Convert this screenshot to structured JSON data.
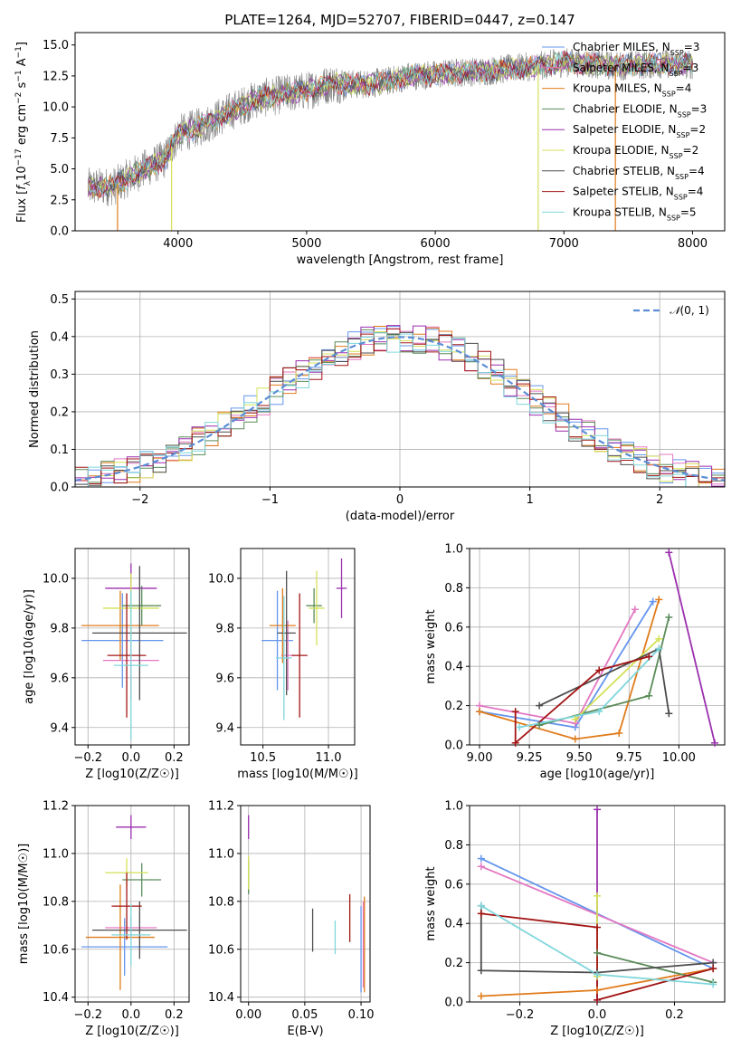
{
  "colors": {
    "Chabrier MILES": "#6495ED",
    "Salpeter MILES": "#E377C2",
    "Kroupa MILES": "#E07B1A",
    "Chabrier ELODIE": "#5B8C5A",
    "Salpeter ELODIE": "#9B2FAE",
    "Kroupa ELODIE": "#D4E157",
    "Chabrier STELIB": "#4D4D4D",
    "Salpeter STELIB": "#A31515",
    "Kroupa STELIB": "#7FD6DB"
  },
  "chart_data": [
    {
      "id": "spectrum",
      "type": "line",
      "title": "PLATE=1264, MJD=52707, FIBERID=0447, z=0.147",
      "xlabel": "wavelength [Angstrom, rest frame]",
      "ylabel": "Flux [f_λ10^-17 erg cm^-2 s^-1 A^-1]",
      "xlim": [
        3200,
        8250
      ],
      "ylim": [
        0,
        16
      ],
      "xticks": [
        4000,
        5000,
        6000,
        7000,
        8000
      ],
      "yticks": [
        0.0,
        2.5,
        5.0,
        7.5,
        10.0,
        12.5,
        15.0
      ],
      "legend": "top-right",
      "legend_entries": [
        {
          "name": "Chabrier MILES",
          "nssp": "3"
        },
        {
          "name": "Salpeter MILES",
          "nssp": "3"
        },
        {
          "name": "Kroupa MILES",
          "nssp": "4"
        },
        {
          "name": "Chabrier ELODIE",
          "nssp": "3"
        },
        {
          "name": "Salpeter ELODIE",
          "nssp": "2"
        },
        {
          "name": "Kroupa ELODIE",
          "nssp": "2"
        },
        {
          "name": "Chabrier STELIB",
          "nssp": "4"
        },
        {
          "name": "Salpeter STELIB",
          "nssp": "4"
        },
        {
          "name": "Kroupa STELIB",
          "nssp": "5"
        }
      ],
      "continuum": [
        [
          3300,
          3.5
        ],
        [
          3500,
          3.6
        ],
        [
          3700,
          4.8
        ],
        [
          3900,
          5.8
        ],
        [
          4000,
          7.8
        ],
        [
          4200,
          8.5
        ],
        [
          4400,
          9.6
        ],
        [
          4600,
          10.6
        ],
        [
          4800,
          11.0
        ],
        [
          5000,
          11.3
        ],
        [
          5200,
          11.9
        ],
        [
          5400,
          11.8
        ],
        [
          5600,
          12.0
        ],
        [
          5800,
          12.5
        ],
        [
          6000,
          12.6
        ],
        [
          6200,
          12.8
        ],
        [
          6400,
          12.9
        ],
        [
          6600,
          13.1
        ],
        [
          6800,
          13.3
        ],
        [
          7000,
          13.6
        ],
        [
          7200,
          13.5
        ],
        [
          7400,
          13.3
        ],
        [
          7600,
          13.4
        ],
        [
          7800,
          13.5
        ],
        [
          8000,
          13.4
        ]
      ]
    },
    {
      "id": "residuals",
      "type": "histogram",
      "xlabel": "(data-model)/error",
      "ylabel": "Normed distribution",
      "xlim": [
        -2.5,
        2.5
      ],
      "ylim": [
        0,
        0.52
      ],
      "xticks": [
        -2,
        -1,
        0,
        1,
        2
      ],
      "yticks": [
        0.0,
        0.1,
        0.2,
        0.3,
        0.4,
        0.5
      ],
      "reference_curve": "N(0,1)",
      "legend": "top-right"
    },
    {
      "id": "age_vs_Z",
      "type": "errorbar",
      "xlabel": "Z [log10(Z/Z☉)]",
      "ylabel": "age [log10(age/yr)]",
      "xlim": [
        -0.26,
        0.27
      ],
      "ylim": [
        9.33,
        10.12
      ],
      "xticks": [
        -0.2,
        0.0,
        0.2
      ],
      "yticks": [
        9.4,
        9.6,
        9.8,
        10.0
      ],
      "points": [
        {
          "model": "Chabrier MILES",
          "x": -0.04,
          "xerr": 0.19,
          "y": 9.75,
          "yerr": 0.19
        },
        {
          "model": "Salpeter MILES",
          "x": 0.0,
          "xerr": 0.13,
          "y": 9.67,
          "yerr": 0.16
        },
        {
          "model": "Kroupa MILES",
          "x": -0.05,
          "xerr": 0.18,
          "y": 9.81,
          "yerr": 0.14
        },
        {
          "model": "Chabrier ELODIE",
          "x": 0.05,
          "xerr": 0.09,
          "y": 9.89,
          "yerr": 0.08
        },
        {
          "model": "Salpeter ELODIE",
          "x": 0.0,
          "xerr": 0.12,
          "y": 9.96,
          "yerr": 0.1
        },
        {
          "model": "Kroupa ELODIE",
          "x": 0.0,
          "xerr": 0.13,
          "y": 9.88,
          "yerr": 0.14
        },
        {
          "model": "Chabrier STELIB",
          "x": 0.04,
          "xerr": 0.22,
          "y": 9.78,
          "yerr": 0.27
        },
        {
          "model": "Salpeter STELIB",
          "x": -0.02,
          "xerr": 0.09,
          "y": 9.69,
          "yerr": 0.25
        },
        {
          "model": "Kroupa STELIB",
          "x": 0.0,
          "xerr": 0.08,
          "y": 9.65,
          "yerr": 0.3
        }
      ]
    },
    {
      "id": "age_vs_mass",
      "type": "errorbar",
      "xlabel": "mass [log10(M/M☉)]",
      "ylabel": "",
      "xlim": [
        10.33,
        11.2
      ],
      "ylim": [
        9.33,
        10.12
      ],
      "xticks": [
        10.5,
        11.0
      ],
      "yticks": [
        9.4,
        9.6,
        9.8,
        10.0
      ],
      "points": [
        {
          "model": "Chabrier MILES",
          "x": 10.61,
          "xerr": 0.12,
          "y": 9.75,
          "yerr": 0.2
        },
        {
          "model": "Salpeter MILES",
          "x": 10.69,
          "xerr": 0.05,
          "y": 9.69,
          "yerr": 0.14
        },
        {
          "model": "Kroupa MILES",
          "x": 10.65,
          "xerr": 0.1,
          "y": 9.81,
          "yerr": 0.15
        },
        {
          "model": "Chabrier ELODIE",
          "x": 10.89,
          "xerr": 0.06,
          "y": 9.89,
          "yerr": 0.07
        },
        {
          "model": "Salpeter ELODIE",
          "x": 11.1,
          "xerr": 0.04,
          "y": 9.96,
          "yerr": 0.12
        },
        {
          "model": "Kroupa ELODIE",
          "x": 10.91,
          "xerr": 0.06,
          "y": 9.88,
          "yerr": 0.15
        },
        {
          "model": "Chabrier STELIB",
          "x": 10.68,
          "xerr": 0.07,
          "y": 9.78,
          "yerr": 0.25
        },
        {
          "model": "Salpeter STELIB",
          "x": 10.78,
          "xerr": 0.06,
          "y": 9.69,
          "yerr": 0.25
        },
        {
          "model": "Kroupa STELIB",
          "x": 10.66,
          "xerr": 0.06,
          "y": 9.68,
          "yerr": 0.25
        }
      ]
    },
    {
      "id": "weight_vs_age",
      "type": "line",
      "xlabel": "age [log10(age/yr)]",
      "ylabel": "mass weight",
      "xlim": [
        8.95,
        10.23
      ],
      "ylim": [
        0,
        1.0
      ],
      "xticks": [
        9.0,
        9.25,
        9.5,
        9.75,
        10.0
      ],
      "yticks": [
        0.0,
        0.2,
        0.4,
        0.6,
        0.8,
        1.0
      ],
      "series": [
        {
          "model": "Chabrier MILES",
          "x": [
            9.0,
            9.48,
            9.87
          ],
          "y": [
            0.17,
            0.09,
            0.73
          ]
        },
        {
          "model": "Salpeter MILES",
          "x": [
            9.0,
            9.48,
            9.78
          ],
          "y": [
            0.2,
            0.11,
            0.69
          ]
        },
        {
          "model": "Kroupa MILES",
          "x": [
            9.0,
            9.48,
            9.7,
            9.9
          ],
          "y": [
            0.17,
            0.03,
            0.06,
            0.74
          ]
        },
        {
          "model": "Chabrier ELODIE",
          "x": [
            9.3,
            9.85,
            9.95
          ],
          "y": [
            0.1,
            0.25,
            0.65
          ]
        },
        {
          "model": "Salpeter ELODIE",
          "x": [
            9.95,
            10.18
          ],
          "y": [
            0.98,
            0.01
          ]
        },
        {
          "model": "Kroupa ELODIE",
          "x": [
            9.48,
            9.9
          ],
          "y": [
            0.13,
            0.54
          ]
        },
        {
          "model": "Chabrier STELIB",
          "x": [
            9.3,
            9.9,
            9.95
          ],
          "y": [
            0.2,
            0.49,
            0.16
          ]
        },
        {
          "model": "Salpeter STELIB",
          "x": [
            9.18,
            9.18,
            9.6,
            9.85
          ],
          "y": [
            0.17,
            0.01,
            0.38,
            0.45
          ]
        },
        {
          "model": "Kroupa STELIB",
          "x": [
            9.2,
            9.6,
            9.9
          ],
          "y": [
            0.09,
            0.17,
            0.49
          ]
        }
      ]
    },
    {
      "id": "mass_vs_Z",
      "type": "errorbar",
      "xlabel": "Z [log10(Z/Z☉)]",
      "ylabel": "mass [log10(M/M☉)]",
      "xlim": [
        -0.26,
        0.27
      ],
      "ylim": [
        10.38,
        11.2
      ],
      "xticks": [
        -0.2,
        0.0,
        0.2
      ],
      "yticks": [
        10.4,
        10.6,
        10.8,
        11.0,
        11.2
      ],
      "points": [
        {
          "model": "Chabrier MILES",
          "x": -0.03,
          "xerr": 0.2,
          "y": 10.61,
          "yerr": 0.12
        },
        {
          "model": "Salpeter MILES",
          "x": 0.0,
          "xerr": 0.12,
          "y": 10.69,
          "yerr": 0.05
        },
        {
          "model": "Kroupa MILES",
          "x": -0.05,
          "xerr": 0.16,
          "y": 10.65,
          "yerr": 0.22
        },
        {
          "model": "Chabrier ELODIE",
          "x": 0.05,
          "xerr": 0.09,
          "y": 10.89,
          "yerr": 0.07
        },
        {
          "model": "Salpeter ELODIE",
          "x": 0.0,
          "xerr": 0.07,
          "y": 11.11,
          "yerr": 0.05
        },
        {
          "model": "Kroupa ELODIE",
          "x": -0.02,
          "xerr": 0.1,
          "y": 10.92,
          "yerr": 0.06
        },
        {
          "model": "Chabrier STELIB",
          "x": 0.04,
          "xerr": 0.22,
          "y": 10.68,
          "yerr": 0.12
        },
        {
          "model": "Salpeter STELIB",
          "x": -0.02,
          "xerr": 0.07,
          "y": 10.78,
          "yerr": 0.14
        },
        {
          "model": "Kroupa STELIB",
          "x": 0.0,
          "xerr": 0.09,
          "y": 10.66,
          "yerr": 0.13
        }
      ]
    },
    {
      "id": "mass_vs_ebv",
      "type": "errorbar",
      "xlabel": "E(B-V)",
      "ylabel": "",
      "xlim": [
        -0.007,
        0.108
      ],
      "ylim": [
        10.38,
        11.2
      ],
      "xticks": [
        0.0,
        0.05,
        0.1
      ],
      "yticks": [
        10.4,
        10.6,
        10.8,
        11.0,
        11.2
      ],
      "points": [
        {
          "model": "Chabrier MILES",
          "x": 0.1,
          "xerr": 0,
          "y": 10.6,
          "yerr": 0.18
        },
        {
          "model": "Salpeter MILES",
          "x": 0.102,
          "xerr": 0,
          "y": 10.62,
          "yerr": 0.18
        },
        {
          "model": "Kroupa MILES",
          "x": 0.103,
          "xerr": 0,
          "y": 10.62,
          "yerr": 0.2
        },
        {
          "model": "Chabrier ELODIE",
          "x": 0.0,
          "xerr": 0,
          "y": 10.9,
          "yerr": 0.07
        },
        {
          "model": "Salpeter ELODIE",
          "x": 0.0,
          "xerr": 0,
          "y": 11.11,
          "yerr": 0.05
        },
        {
          "model": "Kroupa ELODIE",
          "x": 0.0,
          "xerr": 0,
          "y": 10.92,
          "yerr": 0.07
        },
        {
          "model": "Chabrier STELIB",
          "x": 0.057,
          "xerr": 0,
          "y": 10.68,
          "yerr": 0.09
        },
        {
          "model": "Salpeter STELIB",
          "x": 0.09,
          "xerr": 0,
          "y": 10.73,
          "yerr": 0.1
        },
        {
          "model": "Kroupa STELIB",
          "x": 0.077,
          "xerr": 0,
          "y": 10.65,
          "yerr": 0.07
        }
      ]
    },
    {
      "id": "weight_vs_Z",
      "type": "line",
      "xlabel": "Z [log10(Z/Z☉)]",
      "ylabel": "mass weight",
      "xlim": [
        -0.33,
        0.33
      ],
      "ylim": [
        0,
        1.0
      ],
      "xticks": [
        -0.2,
        0.0,
        0.2
      ],
      "yticks": [
        0.0,
        0.2,
        0.4,
        0.6,
        0.8,
        1.0
      ],
      "series": [
        {
          "model": "Chabrier MILES",
          "x": [
            -0.3,
            0.3
          ],
          "y": [
            0.73,
            0.17
          ]
        },
        {
          "model": "Salpeter MILES",
          "x": [
            -0.3,
            0.3
          ],
          "y": [
            0.69,
            0.2
          ]
        },
        {
          "model": "Kroupa MILES",
          "x": [
            -0.3,
            0.0,
            0.3
          ],
          "y": [
            0.03,
            0.06,
            0.17
          ]
        },
        {
          "model": "Chabrier ELODIE",
          "x": [
            0.0,
            0.3
          ],
          "y": [
            0.25,
            0.1
          ]
        },
        {
          "model": "Salpeter ELODIE",
          "x": [
            0.0,
            0.0
          ],
          "y": [
            0.01,
            0.98
          ]
        },
        {
          "model": "Kroupa ELODIE",
          "x": [
            0.0,
            0.0
          ],
          "y": [
            0.13,
            0.54
          ]
        },
        {
          "model": "Chabrier STELIB",
          "x": [
            -0.3,
            -0.3,
            0.0,
            0.3
          ],
          "y": [
            0.49,
            0.16,
            0.15,
            0.2
          ]
        },
        {
          "model": "Salpeter STELIB",
          "x": [
            -0.3,
            0.0,
            0.0,
            0.3
          ],
          "y": [
            0.45,
            0.38,
            0.01,
            0.17
          ]
        },
        {
          "model": "Kroupa STELIB",
          "x": [
            -0.3,
            0.0,
            0.3
          ],
          "y": [
            0.49,
            0.14,
            0.09
          ]
        }
      ]
    }
  ]
}
